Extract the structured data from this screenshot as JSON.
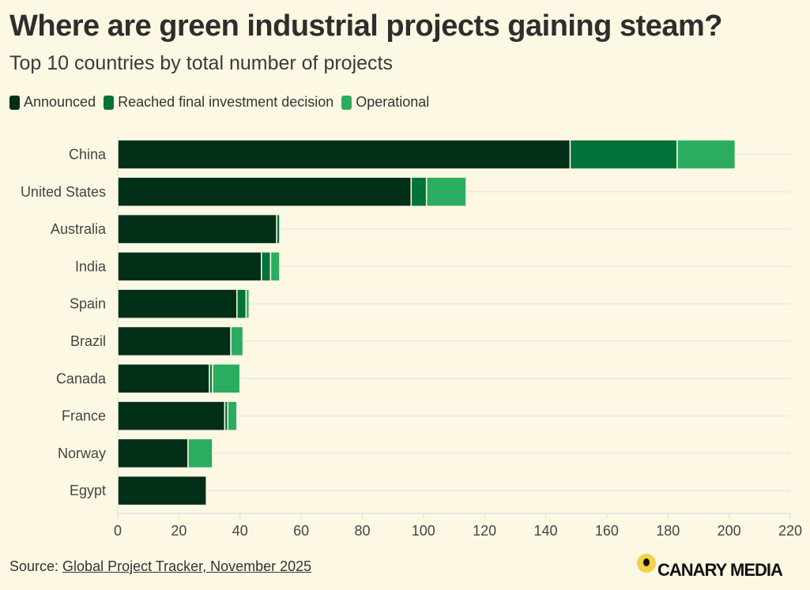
{
  "header": {
    "title": "Where are green industrial projects gaining steam?",
    "subtitle": "Top 10 countries by total number of projects"
  },
  "legend": [
    {
      "label": "Announced",
      "color": "#022f18"
    },
    {
      "label": "Reached final investment decision",
      "color": "#037339"
    },
    {
      "label": "Operational",
      "color": "#2aad60"
    }
  ],
  "footer": {
    "source_prefix": "Source: ",
    "source_link": "Global Project Tracker, November 2025",
    "logo_text": "CANARY MEDIA"
  },
  "chart_data": {
    "type": "bar",
    "orientation": "horizontal",
    "stacked": true,
    "title": "Where are green industrial projects gaining steam?",
    "subtitle": "Top 10 countries by total number of projects",
    "xlabel": "",
    "ylabel": "",
    "xlim": [
      0,
      220
    ],
    "xticks": [
      0,
      20,
      40,
      60,
      80,
      100,
      120,
      140,
      160,
      180,
      200,
      220
    ],
    "grid": true,
    "legend_position": "top-left",
    "categories": [
      "China",
      "United States",
      "Australia",
      "India",
      "Spain",
      "Brazil",
      "Canada",
      "France",
      "Norway",
      "Egypt"
    ],
    "series": [
      {
        "name": "Announced",
        "color": "#022f18",
        "values": [
          148,
          96,
          52,
          47,
          39,
          37,
          30,
          35,
          23,
          29
        ]
      },
      {
        "name": "Reached final investment decision",
        "color": "#037339",
        "values": [
          35,
          5,
          1,
          3,
          3,
          0,
          1,
          1,
          0,
          0
        ]
      },
      {
        "name": "Operational",
        "color": "#2aad60",
        "values": [
          19,
          13,
          0,
          3,
          1,
          4,
          9,
          3,
          8,
          0
        ]
      }
    ]
  }
}
